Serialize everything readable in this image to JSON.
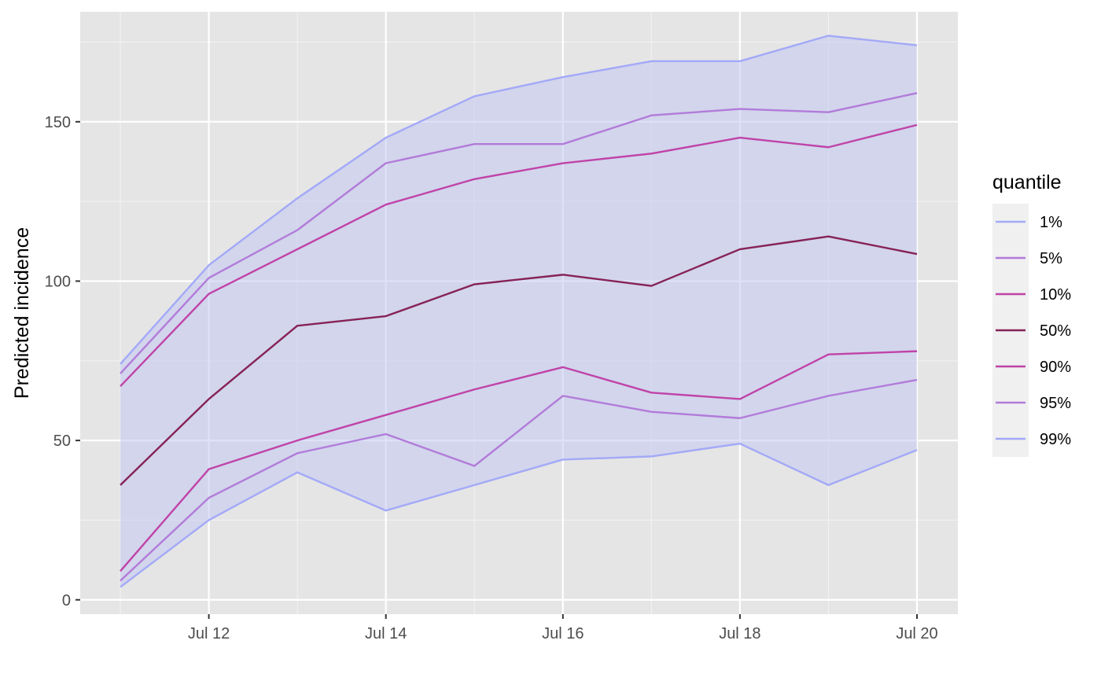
{
  "chart_data": {
    "type": "line",
    "xlabel": "",
    "ylabel": "Predicted incidence",
    "x": [
      "2021-07-11",
      "2021-07-12",
      "2021-07-13",
      "2021-07-14",
      "2021-07-15",
      "2021-07-16",
      "2021-07-17",
      "2021-07-18",
      "2021-07-19",
      "2021-07-20"
    ],
    "x_ticks": [
      {
        "date": "2021-07-12",
        "label": "Jul 12"
      },
      {
        "date": "2021-07-14",
        "label": "Jul 14"
      },
      {
        "date": "2021-07-16",
        "label": "Jul 16"
      },
      {
        "date": "2021-07-18",
        "label": "Jul 18"
      },
      {
        "date": "2021-07-20",
        "label": "Jul 20"
      }
    ],
    "y_ticks": [
      0,
      50,
      100,
      150
    ],
    "ylim": [
      -4.5,
      184.5
    ],
    "grid": true,
    "band": {
      "lower": "1%",
      "upper": "99%",
      "color": "#c3c9f2",
      "opacity": 0.55
    },
    "legend": {
      "title": "quantile",
      "position": "right"
    },
    "series": [
      {
        "name": "1%",
        "color": "#a3a9f7",
        "values": [
          74,
          105,
          126,
          145,
          158,
          164,
          169,
          169,
          177,
          174
        ]
      },
      {
        "name": "5%",
        "color": "#b27bd9",
        "values": [
          71,
          101,
          116,
          137,
          143,
          143,
          152,
          154,
          153,
          159
        ]
      },
      {
        "name": "10%",
        "color": "#c043a8",
        "values": [
          67,
          96,
          110,
          124,
          132,
          137,
          140,
          145,
          142,
          149
        ]
      },
      {
        "name": "50%",
        "color": "#862257",
        "values": [
          36,
          63,
          86,
          89,
          99,
          102,
          98.5,
          110,
          114,
          108.5
        ]
      },
      {
        "name": "90%",
        "color": "#c043a8",
        "values": [
          9,
          41,
          50,
          58,
          66,
          73,
          65,
          63,
          77,
          78
        ]
      },
      {
        "name": "95%",
        "color": "#b27bd9",
        "values": [
          6,
          32,
          46,
          52,
          42,
          64,
          59,
          57,
          64,
          69
        ]
      },
      {
        "name": "99%",
        "color": "#a3a9f7",
        "values": [
          4,
          25,
          40,
          28,
          36,
          44,
          45,
          49,
          36,
          47
        ]
      }
    ]
  }
}
